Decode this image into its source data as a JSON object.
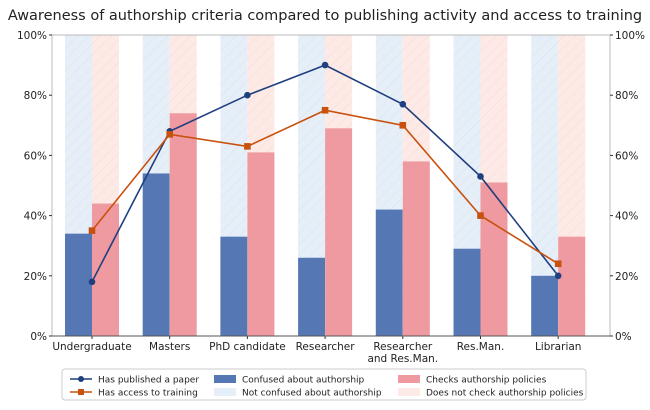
{
  "chart_data": {
    "type": "bar",
    "title": "Awareness of authorship criteria compared to publishing activity and access to training",
    "categories": [
      "Undergraduate",
      "Masters",
      "PhD candidate",
      "Researcher",
      "Researcher\nand Res.Man.",
      "Res.Man.",
      "Librarian"
    ],
    "ylim": [
      0,
      100
    ],
    "yticks": [
      "0%",
      "20%",
      "40%",
      "60%",
      "80%",
      "100%"
    ],
    "ytick_values": [
      0,
      20,
      40,
      60,
      80,
      100
    ],
    "grid": false,
    "legend_position": "bottom",
    "bar_series": [
      {
        "name": "Confused about authorship",
        "color": "#5578b5",
        "values": [
          34,
          54,
          33,
          26,
          42,
          29,
          20
        ],
        "remainder_name": "Not confused about authorship",
        "remainder_color": "#e6eff8"
      },
      {
        "name": "Checks authorship policies",
        "color": "#ef9aa0",
        "values": [
          44,
          74,
          61,
          69,
          58,
          51,
          33
        ],
        "remainder_name": "Does not check authorship policies",
        "remainder_color": "#fdeae6"
      }
    ],
    "line_series": [
      {
        "name": "Has published a paper",
        "color": "#1f3f7f",
        "marker": "circle",
        "values": [
          18,
          68,
          80,
          90,
          77,
          53,
          20
        ]
      },
      {
        "name": "Has access to training",
        "color": "#c8510e",
        "marker": "square",
        "values": [
          35,
          67,
          63,
          75,
          70,
          40,
          24
        ]
      }
    ]
  }
}
